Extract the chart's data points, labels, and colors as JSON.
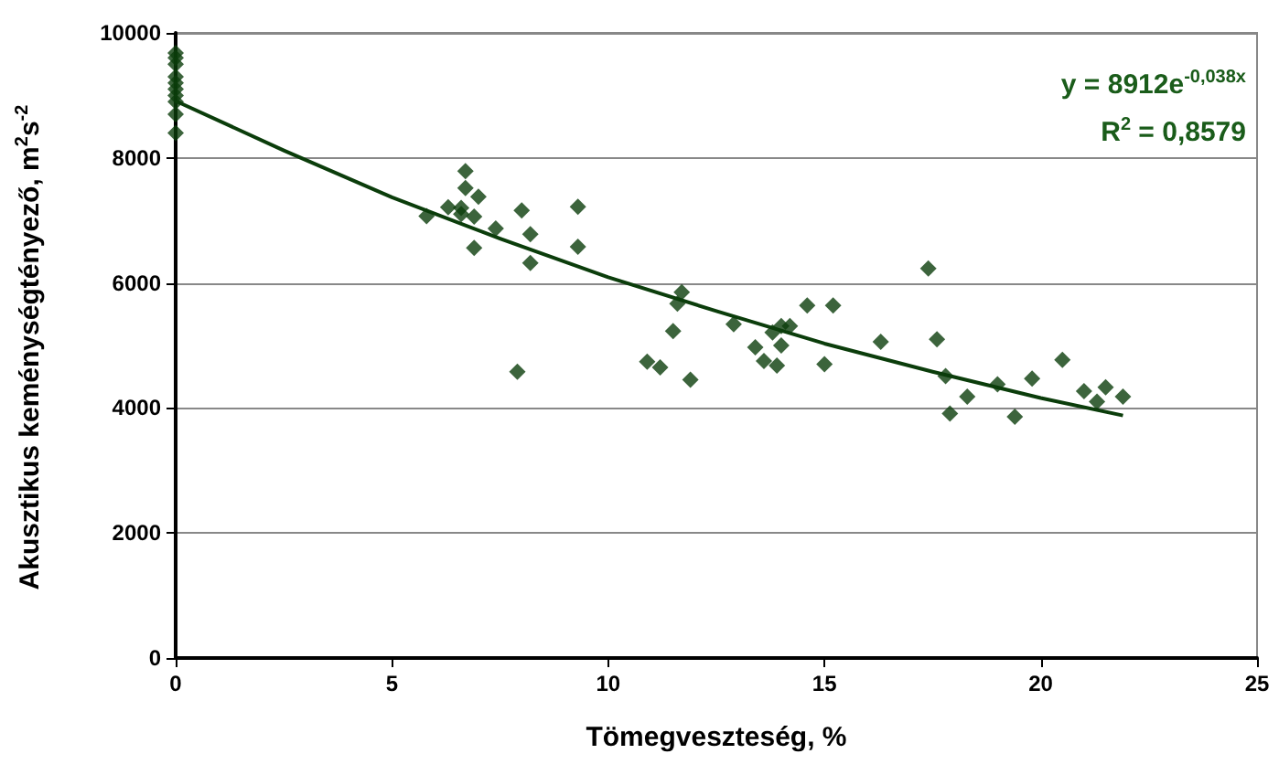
{
  "chart_data": {
    "type": "scatter",
    "xlabel": "Tömegveszteség, %",
    "ylabel": "Akusztikus keménységtényező, m$^{2}$s$^{-2}$",
    "annotations": [
      "y = 8912e$^{-0,038x}$",
      "R$^{2}$ = 0,8579"
    ],
    "xlim": [
      0,
      25
    ],
    "xticks": [
      0,
      5,
      10,
      15,
      20,
      25
    ],
    "ylim": [
      0,
      10000
    ],
    "yticks": [
      0,
      2000,
      4000,
      6000,
      8000,
      10000
    ],
    "grid": "y",
    "marker": "diamond",
    "series": [
      {
        "color": "#0b3d0b",
        "x": [
          0,
          0,
          0,
          0,
          0,
          0,
          0,
          0,
          0,
          0,
          5.8,
          6.3,
          6.6,
          6.6,
          6.7,
          6.7,
          7.0,
          6.9,
          6.9,
          7.4,
          8.0,
          8.2,
          8.2,
          7.9,
          9.3,
          9.3,
          11.7,
          11.6,
          11.5,
          10.9,
          11.2,
          11.9,
          12.9,
          13.4,
          13.8,
          14.0,
          14.2,
          14.0,
          13.6,
          13.9,
          14.6,
          15.2,
          15.0,
          16.3,
          17.6,
          17.4,
          17.8,
          18.3,
          17.9,
          19.0,
          19.4,
          19.8,
          20.5,
          21.0,
          21.5,
          21.3,
          21.9
        ],
        "values": [
          9680,
          9600,
          9500,
          9300,
          9200,
          9100,
          9000,
          8900,
          8700,
          8400,
          7070,
          7210,
          7200,
          7100,
          7790,
          7520,
          7380,
          7060,
          6560,
          6870,
          7160,
          6780,
          6320,
          4580,
          7220,
          6580,
          5850,
          5670,
          5230,
          4740,
          4650,
          4450,
          5340,
          4970,
          5210,
          5310,
          5310,
          5000,
          4750,
          4680,
          5640,
          5640,
          4700,
          5060,
          5100,
          6230,
          4510,
          4180,
          3910,
          4380,
          3860,
          4470,
          4770,
          4270,
          4330,
          4100,
          4180
        ]
      },
      {
        "type": "line",
        "color": "#0b3d0b",
        "marker": "none",
        "x": [
          0,
          2.5,
          5,
          7.5,
          10,
          12.5,
          15,
          17.5,
          20,
          21.9
        ],
        "values": [
          8910,
          8120,
          7370,
          6710,
          6090,
          5550,
          5030,
          4580,
          4160,
          3880
        ]
      }
    ]
  }
}
